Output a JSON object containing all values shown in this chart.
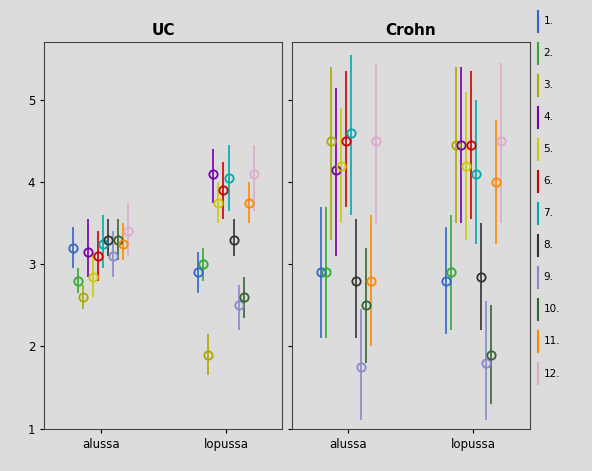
{
  "colors": [
    "#3366CC",
    "#33AA33",
    "#AAAA00",
    "#7700AA",
    "#CCCC00",
    "#CC0000",
    "#00AAAA",
    "#333333",
    "#8888CC",
    "#336633",
    "#FF8800",
    "#DDAACC"
  ],
  "legend_labels": [
    "1.",
    "2.",
    "3.",
    "4.",
    "5.",
    "6.",
    "7.",
    "8.",
    "9.",
    "10.",
    "11.",
    "12."
  ],
  "panel_titles": [
    "UC",
    "Crohn"
  ],
  "x_tick_labels": [
    "alussa",
    "lopussa"
  ],
  "ylim": [
    1.0,
    5.7
  ],
  "yticks": [
    1,
    2,
    3,
    4,
    5
  ],
  "uc_alussa": {
    "means": [
      3.2,
      2.8,
      2.6,
      3.15,
      2.85,
      3.1,
      3.25,
      3.3,
      3.1,
      3.3,
      3.25,
      3.4
    ],
    "lowers": [
      2.95,
      2.65,
      2.45,
      2.85,
      2.6,
      2.8,
      2.95,
      3.1,
      2.85,
      3.05,
      3.05,
      3.1
    ],
    "uppers": [
      3.45,
      2.95,
      2.75,
      3.55,
      3.15,
      3.4,
      3.6,
      3.55,
      3.4,
      3.55,
      3.5,
      3.75
    ]
  },
  "uc_lopussa": {
    "means": [
      2.9,
      3.0,
      1.9,
      4.1,
      3.75,
      3.9,
      4.05,
      3.3,
      2.5,
      2.6,
      3.75,
      4.1
    ],
    "lowers": [
      2.65,
      2.8,
      1.65,
      3.75,
      3.5,
      3.55,
      3.65,
      3.1,
      2.2,
      2.35,
      3.5,
      3.65
    ],
    "uppers": [
      3.15,
      3.2,
      2.15,
      4.4,
      4.0,
      4.25,
      4.45,
      3.55,
      2.75,
      2.85,
      4.0,
      4.45
    ]
  },
  "cr_alussa": {
    "means": [
      2.9,
      2.9,
      4.5,
      4.15,
      4.2,
      4.5,
      4.6,
      2.8,
      1.75,
      2.5,
      2.8,
      4.5
    ],
    "lowers": [
      2.1,
      2.1,
      3.3,
      3.1,
      3.5,
      3.7,
      3.6,
      2.1,
      1.1,
      1.8,
      2.0,
      3.5
    ],
    "uppers": [
      3.7,
      3.7,
      5.4,
      5.15,
      4.9,
      5.35,
      5.55,
      3.55,
      2.45,
      3.2,
      3.6,
      5.45
    ]
  },
  "cr_lopussa": {
    "means": [
      2.8,
      2.9,
      4.45,
      4.45,
      4.2,
      4.45,
      4.1,
      2.85,
      1.8,
      1.9,
      4.0,
      4.5
    ],
    "lowers": [
      2.15,
      2.2,
      3.5,
      3.5,
      3.3,
      3.55,
      3.25,
      2.2,
      1.1,
      1.3,
      3.25,
      3.5
    ],
    "uppers": [
      3.45,
      3.6,
      5.4,
      5.4,
      5.1,
      5.35,
      5.0,
      3.5,
      2.55,
      2.5,
      4.75,
      5.45
    ]
  },
  "background_color": "#DCDCDC",
  "figsize": [
    5.92,
    4.71
  ],
  "dpi": 100
}
